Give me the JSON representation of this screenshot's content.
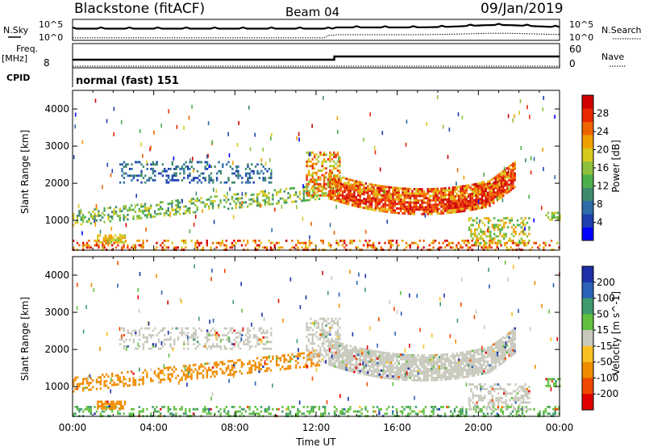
{
  "header": {
    "station": "Blackstone (fitACF)",
    "beam": "Beam 04",
    "date": "09/Jan/2019"
  },
  "summary_panels": {
    "nsky_label": "N.Sky",
    "nsearch_label": "N.Search",
    "noise_tick_top": "10^5",
    "noise_tick_bottom": "10^0",
    "freq_label_1": "Freq.",
    "freq_label_2": "[MHz]",
    "freq_tick_top_right": "60",
    "freq_tick_bottom_left": "8",
    "freq_tick_bottom_right": "0",
    "nave_label": "Nave",
    "cpid_label": "CPID",
    "cpid_value": "normal (fast) 151"
  },
  "chart_data": [
    {
      "type": "heatmap",
      "quantity": "Power",
      "colorbar_label": "Power [dB]",
      "ylabel": "Slant Range [km]",
      "ylim": [
        200,
        4500
      ],
      "yticks": [
        "1000",
        "2000",
        "3000",
        "4000"
      ],
      "xlim_hours": [
        0,
        24
      ],
      "colorbar_ticks": [
        "4",
        "8",
        "12",
        "16",
        "20",
        "24",
        "28"
      ],
      "colors": [
        "#0000ff",
        "#1d3fb0",
        "#2c6ca8",
        "#3f8a6e",
        "#4bb04c",
        "#8fc23c",
        "#d7c81e",
        "#f0a000",
        "#f06400",
        "#e82800",
        "#d00000"
      ]
    },
    {
      "type": "heatmap",
      "quantity": "Velocity",
      "colorbar_label": "Velocity [m s^-1]",
      "ylabel": "Slant Range [km]",
      "ylim": [
        200,
        4500
      ],
      "yticks": [
        "1000",
        "2000",
        "3000",
        "4000"
      ],
      "xlim_hours": [
        0,
        24
      ],
      "colorbar_ticks": [
        "200",
        "100",
        "50",
        "15",
        "-15",
        "-50",
        "-100",
        "-200"
      ],
      "colors": [
        "#1c2fa8",
        "#2a62b8",
        "#3d9a6c",
        "#62c040",
        "#c8c8bc",
        "#f8c020",
        "#f08c00",
        "#f04800",
        "#e00000"
      ]
    }
  ],
  "xaxis": {
    "ticks": [
      "00:00",
      "04:00",
      "08:00",
      "12:00",
      "16:00",
      "20:00",
      "00:00"
    ],
    "label": "Time UT"
  }
}
